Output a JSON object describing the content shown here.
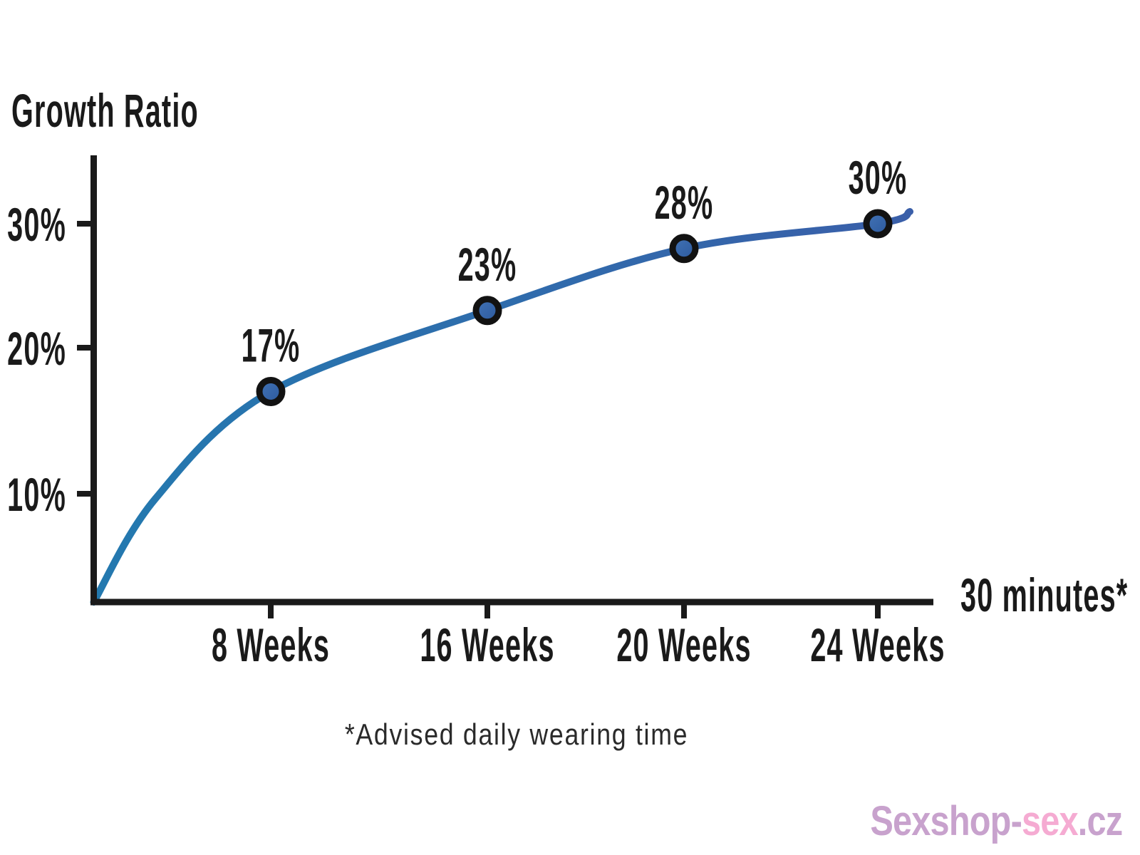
{
  "chart_data": {
    "type": "line",
    "title": "Growth Ratio",
    "x_axis_note": "30 minutes*",
    "footnote": "*Advised daily wearing time",
    "categories": [
      "8 Weeks",
      "16 Weeks",
      "20 Weeks",
      "24 Weeks"
    ],
    "series": [
      {
        "name": "Growth Ratio",
        "values": [
          17,
          23,
          28,
          30
        ]
      }
    ],
    "point_labels": [
      "17%",
      "23%",
      "28%",
      "30%"
    ],
    "y_ticks": [
      {
        "value": 10,
        "label": "10%"
      },
      {
        "value": 20,
        "label": "20%"
      },
      {
        "value": 30,
        "label": "30%"
      }
    ],
    "y_range": [
      0,
      34
    ],
    "curve_starts_at_origin": true,
    "grid": false,
    "legend": "none",
    "colors": {
      "line_gradient_start": "#2379af",
      "line_gradient_end": "#3a5fa9",
      "marker_fill_light": "#4273b6",
      "marker_fill_dark": "#2c599d",
      "marker_outline": "#121212",
      "axis": "#1a1a1a",
      "text": "#1a1a1a",
      "footnote_text": "#2a2a2a"
    }
  },
  "watermark": {
    "text_parts": [
      {
        "text": "Sexshop-",
        "color": "#c8a2cd"
      },
      {
        "text": "sex",
        "color": "#f5abd2"
      },
      {
        "text": ".cz",
        "color": "#c8a2cd"
      }
    ]
  }
}
